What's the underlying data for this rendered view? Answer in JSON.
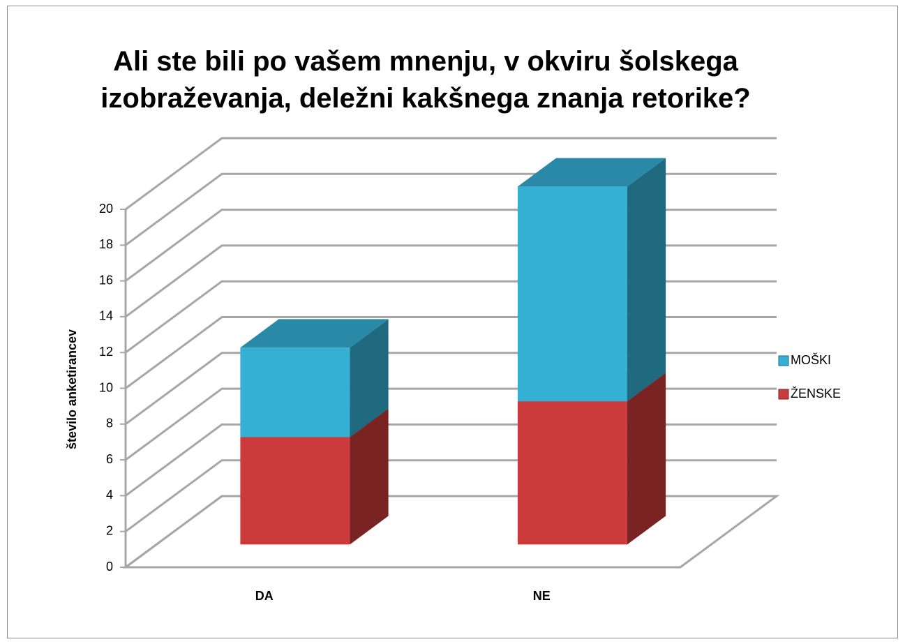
{
  "chart_data": {
    "type": "bar3d_stacked",
    "title": "Ali ste bili po vašem mnenju, v okviru šolskega izobraževanja, deležni kakšnega znanja retorike?",
    "y_label": "število anketirancev",
    "categories": [
      "DA",
      "NE"
    ],
    "series": [
      {
        "name": "ŽENSKE",
        "color": "#cc3b3b",
        "values": [
          6,
          8
        ]
      },
      {
        "name": "MOŠKI",
        "color": "#35b0d5",
        "values": [
          5,
          12
        ]
      }
    ],
    "ylim": [
      0,
      24
    ],
    "yticks": [
      0,
      2,
      4,
      6,
      8,
      10,
      12,
      14,
      16,
      18,
      20
    ],
    "grid": true,
    "legend": "right"
  }
}
